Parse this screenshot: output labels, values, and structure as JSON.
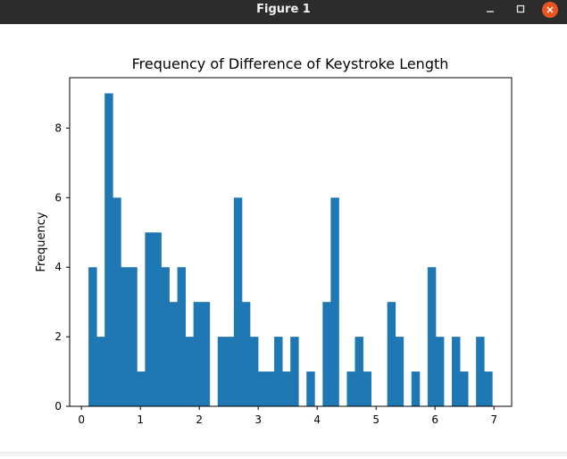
{
  "window": {
    "title": "Figure 1",
    "controls": {
      "minimize_icon": "minimize-icon",
      "maximize_icon": "maximize-icon",
      "close_icon": "close-icon",
      "close_color": "#e95420"
    }
  },
  "chart_data": {
    "type": "bar",
    "title": "Frequency of Difference of Keystroke Length",
    "xlabel": "",
    "ylabel": "Frequency",
    "xlim": [
      -0.2,
      7.3
    ],
    "ylim": [
      0,
      9.45
    ],
    "xticks": [
      0,
      1,
      2,
      3,
      4,
      5,
      6,
      7
    ],
    "yticks": [
      0,
      2,
      4,
      6,
      8
    ],
    "bar_color": "#1f77b4",
    "bin_start": 0.12,
    "bin_width": 0.137,
    "values": [
      4,
      2,
      9,
      6,
      4,
      4,
      1,
      5,
      5,
      4,
      3,
      4,
      2,
      3,
      3,
      0,
      2,
      2,
      6,
      3,
      2,
      1,
      1,
      2,
      1,
      2,
      0,
      1,
      0,
      3,
      6,
      0,
      1,
      2,
      1,
      0,
      0,
      3,
      2,
      0,
      1,
      0,
      4,
      2,
      0,
      2,
      1,
      0,
      2,
      1
    ]
  }
}
